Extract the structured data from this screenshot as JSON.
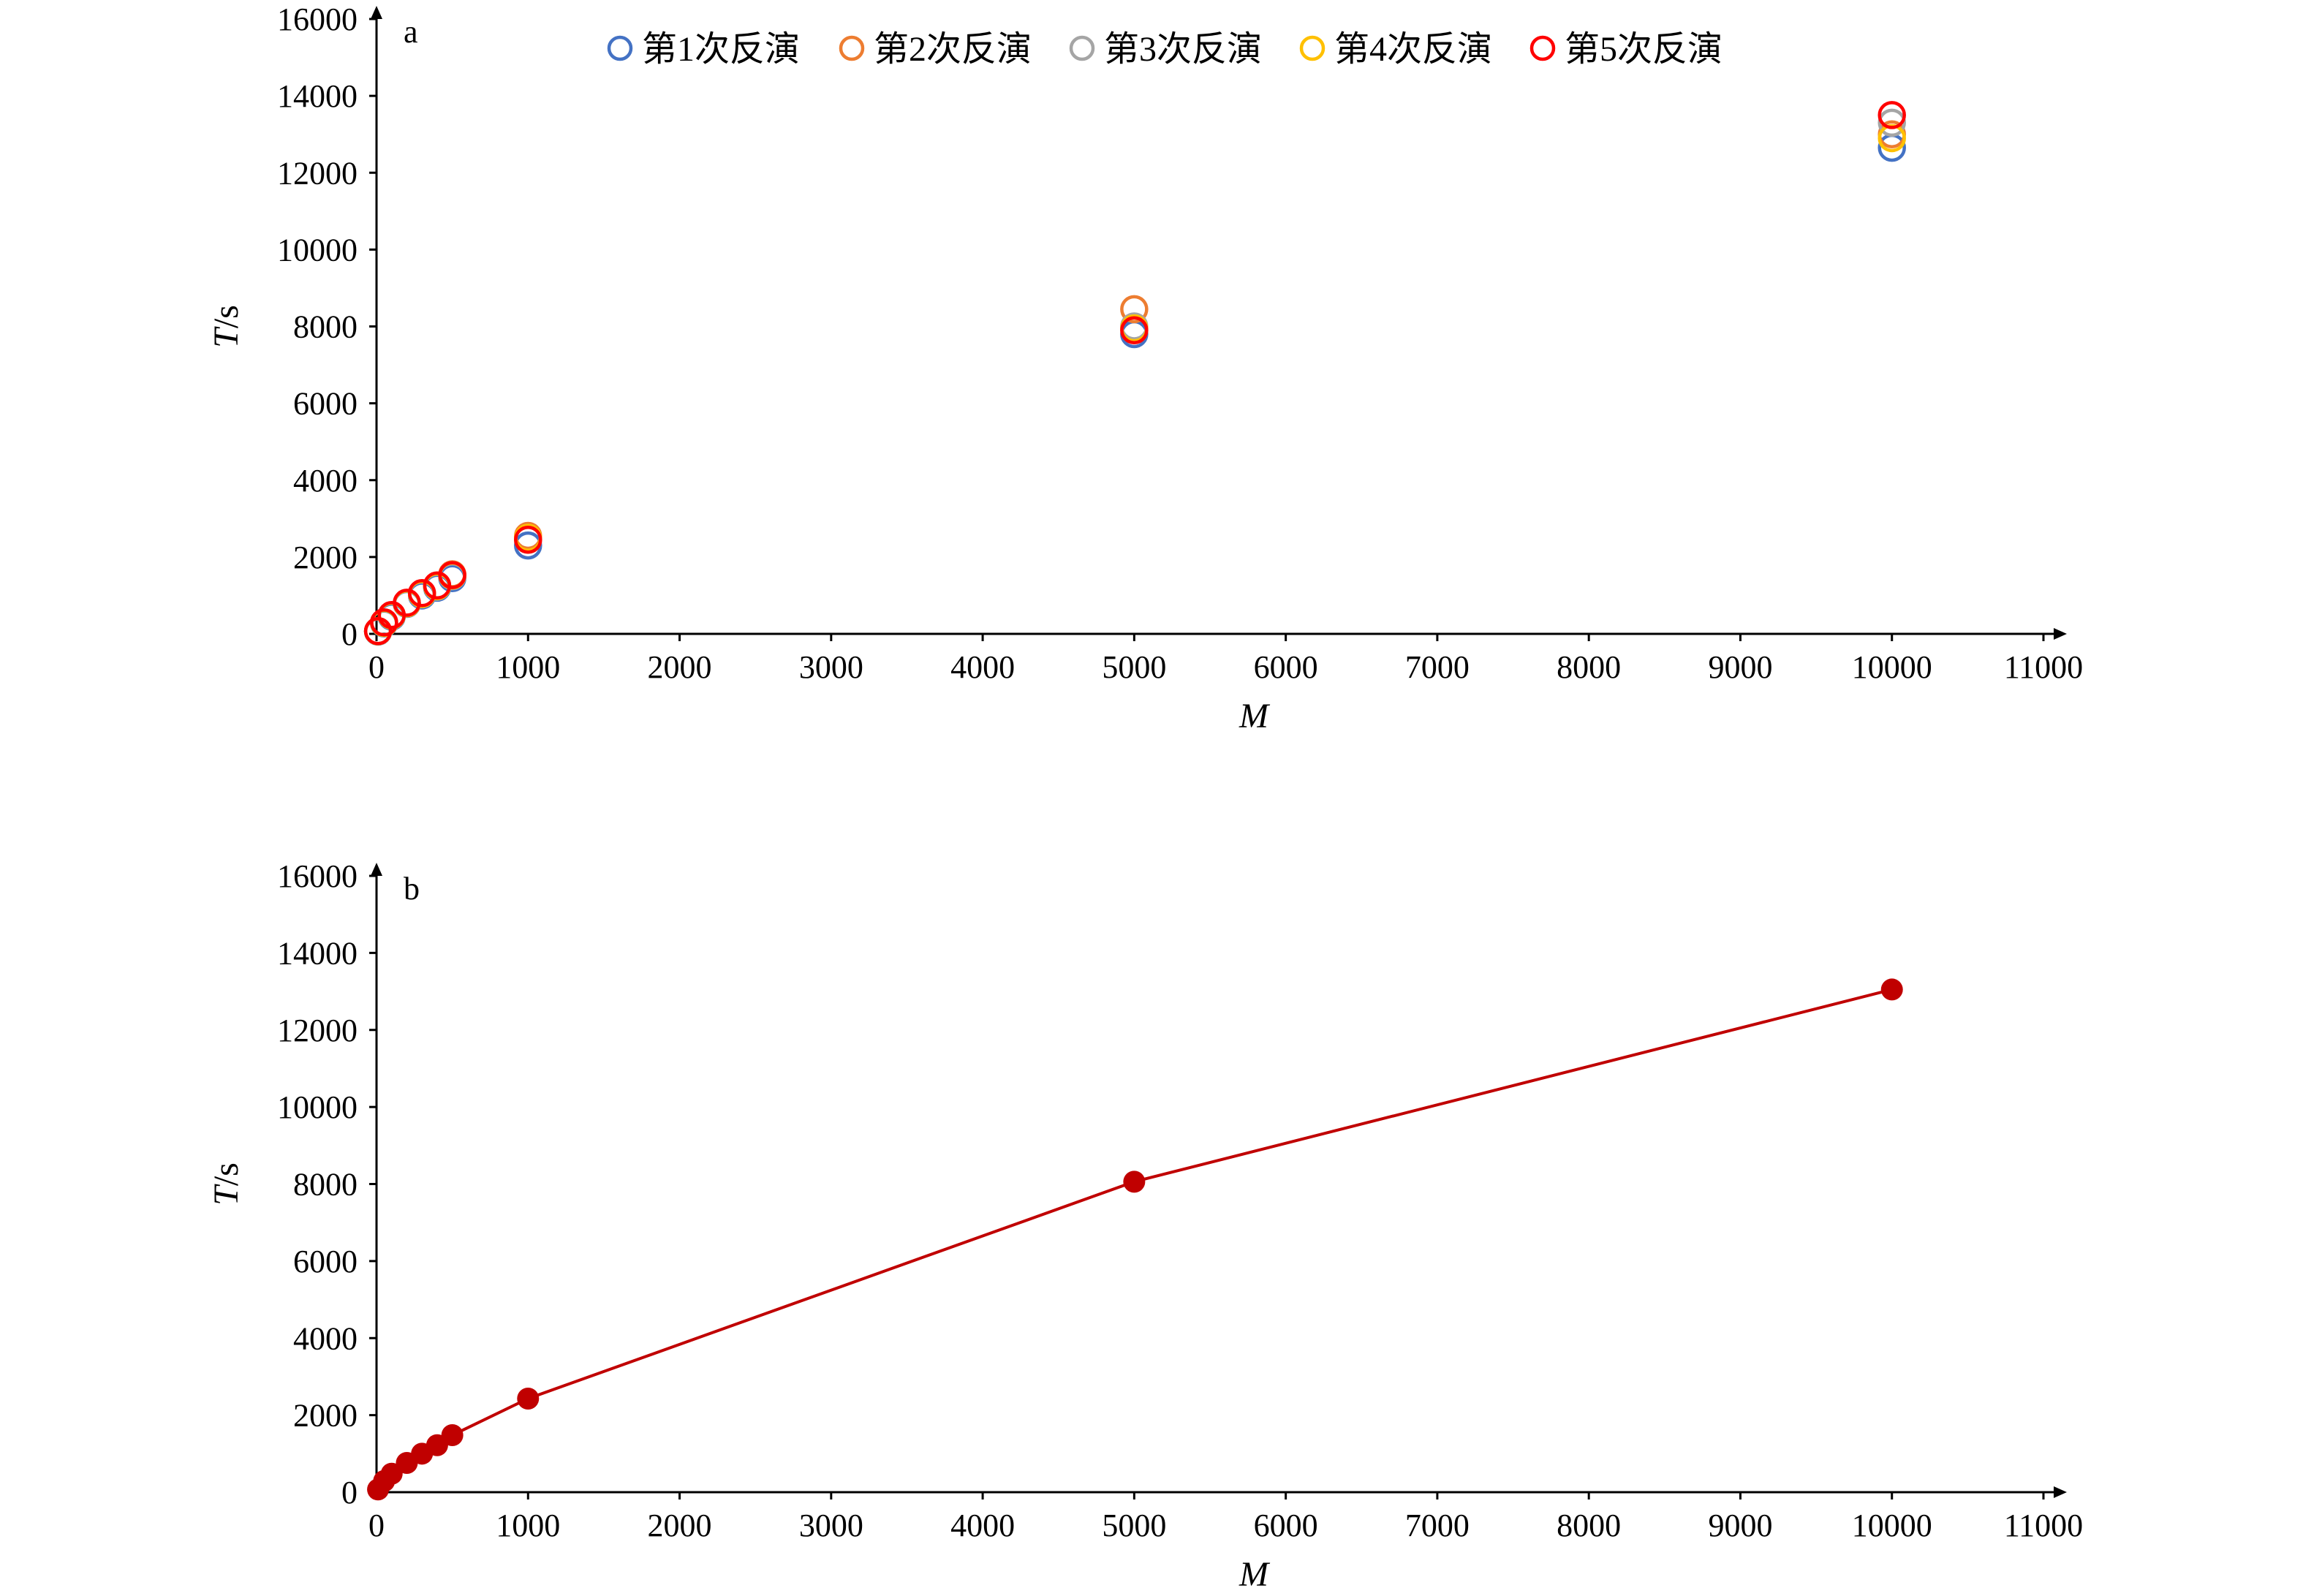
{
  "chart_data": [
    {
      "type": "scatter",
      "panel_label": "a",
      "xlabel": "M",
      "ylabel_main": "T",
      "ylabel_unit": "/s",
      "xlim": [
        0,
        11000
      ],
      "ylim": [
        0,
        16000
      ],
      "x_ticks": [
        "0",
        "1000",
        "2000",
        "3000",
        "4000",
        "5000",
        "6000",
        "7000",
        "8000",
        "9000",
        "10000",
        "11000"
      ],
      "y_ticks": [
        "0",
        "2000",
        "4000",
        "6000",
        "8000",
        "10000",
        "12000",
        "14000",
        "16000"
      ],
      "grid": false,
      "legend_position": "top",
      "marker": "open-circle",
      "series": [
        {
          "name": "第1次反演",
          "color": "#4472C4",
          "x": [
            10,
            50,
            100,
            200,
            300,
            400,
            500,
            1000,
            5000,
            10000
          ],
          "y": [
            60,
            270,
            450,
            780,
            1000,
            1200,
            1450,
            2300,
            7800,
            12650
          ]
        },
        {
          "name": "第2次反演",
          "color": "#ED7D31",
          "x": [
            10,
            50,
            100,
            200,
            300,
            400,
            500,
            1000,
            5000,
            10000
          ],
          "y": [
            70,
            290,
            480,
            800,
            1050,
            1250,
            1550,
            2550,
            8450,
            13000
          ]
        },
        {
          "name": "第3次反演",
          "color": "#A5A5A5",
          "x": [
            10,
            50,
            100,
            200,
            300,
            400,
            500,
            1000,
            5000,
            10000
          ],
          "y": [
            65,
            280,
            470,
            790,
            1030,
            1230,
            1500,
            2450,
            8000,
            13300
          ]
        },
        {
          "name": "第4次反演",
          "color": "#FFC000",
          "x": [
            10,
            50,
            100,
            200,
            300,
            400,
            500,
            1000,
            5000,
            10000
          ],
          "y": [
            68,
            285,
            475,
            795,
            1040,
            1240,
            1520,
            2500,
            7950,
            12900
          ]
        },
        {
          "name": "第5次反演",
          "color": "#FF0000",
          "x": [
            10,
            50,
            100,
            200,
            300,
            400,
            500,
            1000,
            5000,
            10000
          ],
          "y": [
            72,
            300,
            490,
            810,
            1060,
            1260,
            1530,
            2450,
            7900,
            13500
          ]
        }
      ]
    },
    {
      "type": "line",
      "panel_label": "b",
      "xlabel": "M",
      "ylabel_main": "T",
      "ylabel_unit": "/s",
      "xlim": [
        0,
        11000
      ],
      "ylim": [
        0,
        16000
      ],
      "x_ticks": [
        "0",
        "1000",
        "2000",
        "3000",
        "4000",
        "5000",
        "6000",
        "7000",
        "8000",
        "9000",
        "10000",
        "11000"
      ],
      "y_ticks": [
        "0",
        "2000",
        "4000",
        "6000",
        "8000",
        "10000",
        "12000",
        "14000",
        "16000"
      ],
      "grid": false,
      "marker": "filled-circle",
      "series": [
        {
          "color": "#C00000",
          "x": [
            10,
            50,
            100,
            200,
            300,
            400,
            500,
            1000,
            5000,
            10000
          ],
          "y": [
            70,
            290,
            480,
            760,
            1000,
            1220,
            1480,
            2430,
            8060,
            13050
          ]
        }
      ]
    }
  ]
}
